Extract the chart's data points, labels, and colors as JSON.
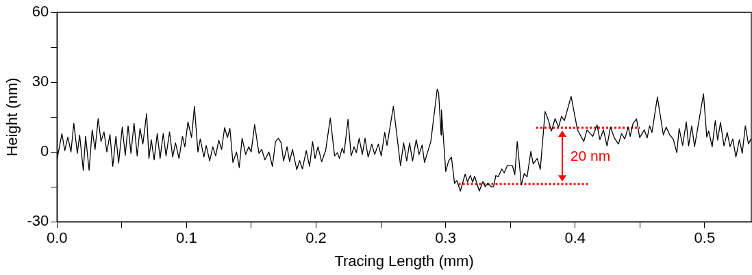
{
  "chart_data": {
    "type": "line",
    "xlabel": "Tracing Length (mm)",
    "ylabel": "Height (nm)",
    "xlim": [
      0,
      0.536
    ],
    "ylim": [
      -30,
      60
    ],
    "xticks": [
      {
        "value": 0,
        "label": "0.0"
      },
      {
        "value": 0.05,
        "label": null
      },
      0.1,
      {
        "value": 0.15,
        "label": null
      },
      0.2,
      {
        "value": 0.25,
        "label": null
      },
      0.3,
      {
        "value": 0.35,
        "label": null
      },
      0.4,
      {
        "value": 0.45,
        "label": null
      },
      0.5
    ],
    "yticks": [
      -30,
      {
        "value": -15,
        "label": null
      },
      0,
      {
        "value": 15,
        "label": null
      },
      30,
      {
        "value": 45,
        "label": null
      },
      60
    ],
    "grid": false,
    "legend": false,
    "marker": "none",
    "line_style": "solid",
    "annotations": [
      "20 nm"
    ],
    "series": [
      {
        "color": "#000000",
        "x": [
          0,
          0.0038,
          0.006,
          0.0084,
          0.0108,
          0.013,
          0.0157,
          0.0175,
          0.0203,
          0.0221,
          0.0248,
          0.0272,
          0.0294,
          0.0318,
          0.034,
          0.0363,
          0.0385,
          0.0409,
          0.0431,
          0.0455,
          0.0476,
          0.0504,
          0.0527,
          0.0549,
          0.0571,
          0.0595,
          0.0619,
          0.0641,
          0.0663,
          0.0692,
          0.071,
          0.0728,
          0.075,
          0.0774,
          0.0796,
          0.082,
          0.0842,
          0.0869,
          0.0893,
          0.0915,
          0.0942,
          0.0969,
          0.0987,
          0.1011,
          0.1039,
          0.1061,
          0.1088,
          0.1106,
          0.1134,
          0.1152,
          0.1179,
          0.1203,
          0.1225,
          0.1249,
          0.1271,
          0.1294,
          0.1316,
          0.1335,
          0.1358,
          0.1386,
          0.1407,
          0.1429,
          0.1457,
          0.148,
          0.1499,
          0.1526,
          0.1559,
          0.1581,
          0.1605,
          0.1636,
          0.1663,
          0.1687,
          0.1709,
          0.1731,
          0.1749,
          0.1776,
          0.1796,
          0.1818,
          0.1851,
          0.1873,
          0.1895,
          0.1924,
          0.195,
          0.1973,
          0.1992,
          0.2015,
          0.2043,
          0.2074,
          0.211,
          0.2143,
          0.2165,
          0.218,
          0.2202,
          0.2216,
          0.2247,
          0.2271,
          0.2293,
          0.2311,
          0.2333,
          0.2357,
          0.2378,
          0.2402,
          0.243,
          0.2453,
          0.2481,
          0.2503,
          0.253,
          0.2548,
          0.2597,
          0.2652,
          0.2676,
          0.27,
          0.2722,
          0.2745,
          0.2773,
          0.2795,
          0.2819,
          0.2837,
          0.2886,
          0.2935,
          0.2946,
          0.2965,
          0.2968,
          0.2983,
          0.3001,
          0.3023,
          0.3045,
          0.3069,
          0.3087,
          0.3114,
          0.3151,
          0.3169,
          0.3191,
          0.3209,
          0.3224,
          0.326,
          0.3288,
          0.3306,
          0.3324,
          0.3355,
          0.337,
          0.3388,
          0.3406,
          0.3434,
          0.3452,
          0.3476,
          0.3516,
          0.3534,
          0.3553,
          0.3585,
          0.3607,
          0.3629,
          0.3658,
          0.3676,
          0.3708,
          0.3731,
          0.3768,
          0.3794,
          0.3817,
          0.3845,
          0.3872,
          0.3895,
          0.3917,
          0.3969,
          0.4018,
          0.4067,
          0.4091,
          0.4136,
          0.4169,
          0.4191,
          0.4219,
          0.4246,
          0.4273,
          0.4301,
          0.4334,
          0.4359,
          0.4383,
          0.441,
          0.4425,
          0.4447,
          0.4474,
          0.4498,
          0.4534,
          0.4556,
          0.4575,
          0.4593,
          0.4635,
          0.4681,
          0.4703,
          0.473,
          0.4757,
          0.4785,
          0.4803,
          0.483,
          0.4858,
          0.4876,
          0.49,
          0.4922,
          0.4991,
          0.5016,
          0.5031,
          0.5058,
          0.5082,
          0.51,
          0.5122,
          0.5149,
          0.5174,
          0.5196,
          0.5217,
          0.5241,
          0.5268,
          0.529,
          0.5314,
          0.5338,
          0.536
        ],
        "values": [
          -3.4,
          7.9,
          0.6,
          6.4,
          0,
          12.3,
          -0.6,
          7.3,
          -7.9,
          6.7,
          -7.9,
          9.5,
          1.1,
          14.3,
          4.5,
          8.6,
          0,
          7.5,
          -6.2,
          6.7,
          -4.8,
          10.7,
          -1.5,
          11.2,
          -0.6,
          12.3,
          -1.7,
          10.1,
          3.4,
          16.5,
          -2.8,
          5.3,
          -3.4,
          7.9,
          -2.8,
          7.9,
          -1.7,
          8.6,
          -2.2,
          3.9,
          -2.8,
          6.7,
          2.2,
          12.9,
          6.2,
          19.6,
          0,
          5.6,
          -2.2,
          2.8,
          -3.9,
          2.2,
          -1.7,
          5,
          1.1,
          10.4,
          6.2,
          10.1,
          -4.5,
          0,
          -6.7,
          5.9,
          -1.1,
          2.2,
          0,
          11.8,
          -0.6,
          1.1,
          -3.4,
          0,
          -6.2,
          4.5,
          5.9,
          3.9,
          -3.9,
          2.2,
          -4.2,
          1.1,
          -7.6,
          -3.7,
          -7.3,
          0.6,
          -6.2,
          4.5,
          -2.8,
          2.2,
          -4.2,
          0.6,
          14.6,
          -1.7,
          -0.3,
          -2.8,
          1.7,
          -0.6,
          14,
          -1.7,
          2.2,
          -0.3,
          5.9,
          -1.1,
          5.9,
          -2.2,
          3.4,
          -1.1,
          3.4,
          -1.7,
          8.4,
          2.8,
          19.6,
          -5.9,
          3.9,
          -3.9,
          3.9,
          -3.9,
          5.3,
          -1.1,
          3,
          -4.5,
          4.5,
          27,
          25.5,
          7.3,
          18,
          6.2,
          -8.4,
          -3.9,
          -2.2,
          -13.5,
          -12.3,
          -16.8,
          -9.5,
          -12.9,
          -10.1,
          -13,
          -10.4,
          -16.8,
          -12.7,
          -14.9,
          -13.5,
          -15,
          -15,
          -10.1,
          -10.7,
          -7.3,
          -9,
          -5.9,
          -5.9,
          -9.8,
          4.5,
          -14.2,
          -9.3,
          -10.7,
          0.2,
          -5.1,
          -2.8,
          -7.5,
          17.4,
          13.5,
          9,
          14.3,
          10.7,
          15.3,
          13.5,
          23.9,
          9.5,
          4.5,
          9.5,
          6.7,
          11.6,
          5.3,
          9.5,
          2.6,
          10.7,
          6.2,
          3.4,
          7.9,
          5.6,
          10.7,
          6.7,
          12.3,
          14.2,
          6.2,
          9.5,
          6,
          11.2,
          8.4,
          23.6,
          7.3,
          10.7,
          7.3,
          5.6,
          -0.3,
          10.1,
          2.8,
          12.9,
          2.6,
          11.2,
          2.3,
          25,
          6.4,
          9,
          2.3,
          13.5,
          5.1,
          12.7,
          2.6,
          8.4,
          2.3,
          5.6,
          -2.2,
          5.3,
          -0.6,
          11.2,
          3.4,
          5.9
        ]
      },
      {
        "color": "#ff0000",
        "line_style": "dotted",
        "x": [
          0.37,
          0.45
        ],
        "values": [
          10.4,
          10.4
        ]
      },
      {
        "color": "#ff0000",
        "line_style": "dotted",
        "x": [
          0.31,
          0.41
        ],
        "values": [
          -13.8,
          -13.8
        ]
      }
    ]
  }
}
